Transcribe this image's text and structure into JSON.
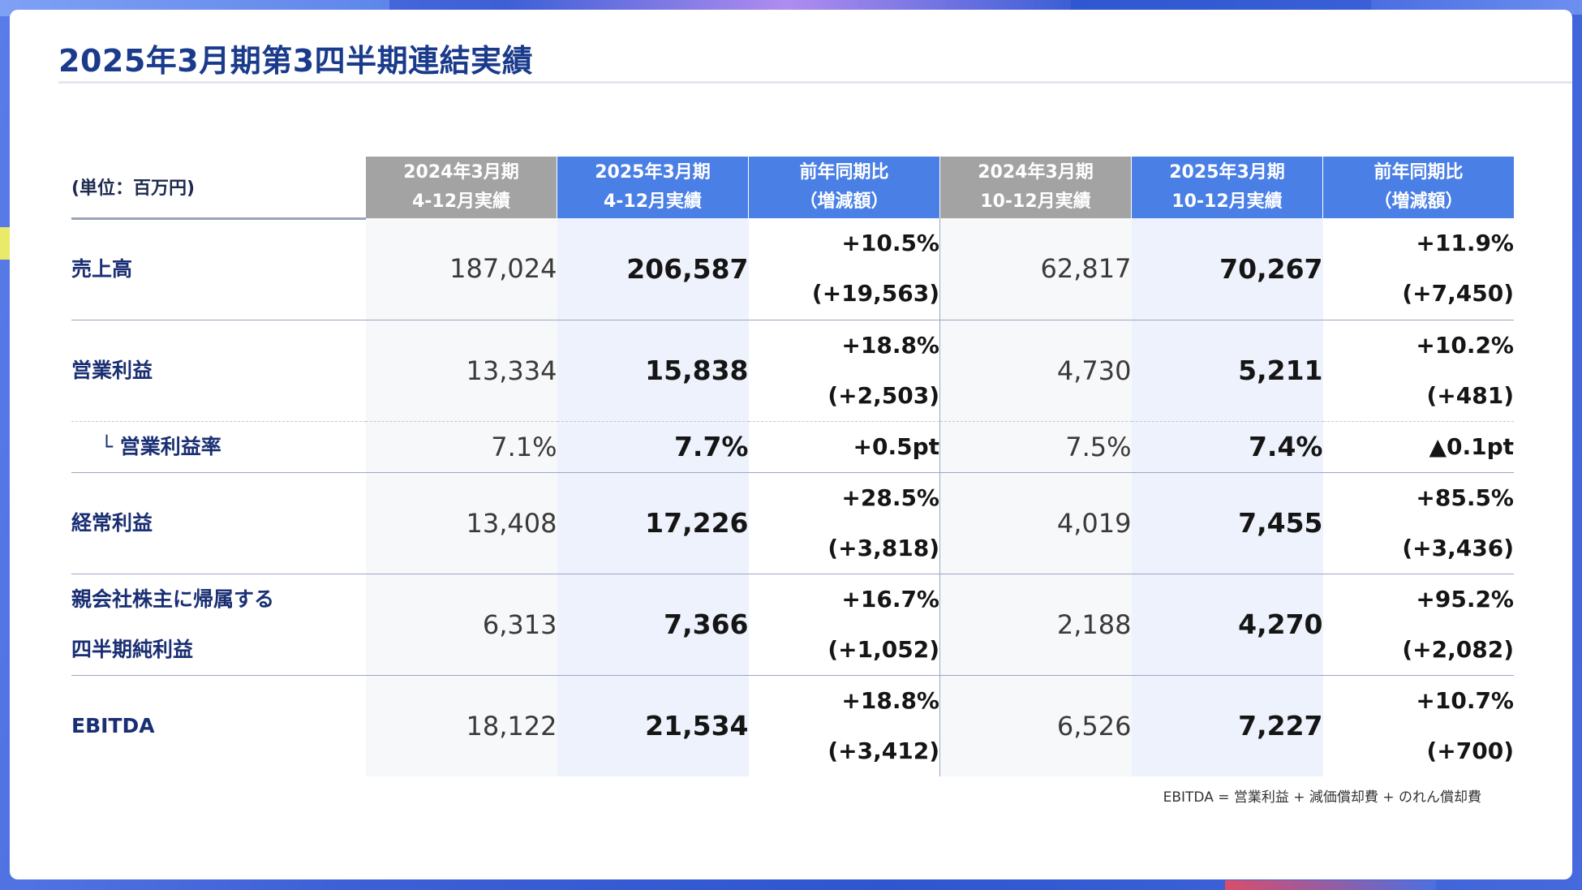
{
  "title": "2025年3月期第3四半期連結実績",
  "table": {
    "unit_label": "(単位：百万円)",
    "columns": [
      {
        "line1": "2024年3月期",
        "line2": "4-12月実績"
      },
      {
        "line1": "2025年3月期",
        "line2": "4-12月実績"
      },
      {
        "line1": "前年同期比",
        "line2": "（増減額）"
      },
      {
        "line1": "2024年3月期",
        "line2": "10-12月実績"
      },
      {
        "line1": "2025年3月期",
        "line2": "10-12月実績"
      },
      {
        "line1": "前年同期比",
        "line2": "（増減額）"
      }
    ],
    "rows": [
      {
        "label": [
          "売上高"
        ],
        "c1": "187,024",
        "c2": "206,587",
        "c3": [
          "+10.5%",
          "(+19,563)"
        ],
        "c4": "62,817",
        "c5": "70,267",
        "c6": [
          "+11.9%",
          "(+7,450)"
        ]
      },
      {
        "label": [
          "営業利益"
        ],
        "c1": "13,334",
        "c2": "15,838",
        "c3": [
          "+18.8%",
          "(+2,503)"
        ],
        "c4": "4,730",
        "c5": "5,211",
        "c6": [
          "+10.2%",
          "(+481)"
        ]
      },
      {
        "label": [
          "└ 営業利益率"
        ],
        "c1": "7.1%",
        "c2": "7.7%",
        "c3": [
          "+0.5pt"
        ],
        "c4": "7.5%",
        "c5": "7.4%",
        "c6": [
          "▲0.1pt"
        ]
      },
      {
        "label": [
          "経常利益"
        ],
        "c1": "13,408",
        "c2": "17,226",
        "c3": [
          "+28.5%",
          "(+3,818)"
        ],
        "c4": "4,019",
        "c5": "7,455",
        "c6": [
          "+85.5%",
          "(+3,436)"
        ]
      },
      {
        "label": [
          "親会社株主に帰属する",
          "四半期純利益"
        ],
        "c1": "6,313",
        "c2": "7,366",
        "c3": [
          "+16.7%",
          "(+1,052)"
        ],
        "c4": "2,188",
        "c5": "4,270",
        "c6": [
          "+95.2%",
          "(+2,082)"
        ]
      },
      {
        "label": [
          "EBITDA"
        ],
        "c1": "18,122",
        "c2": "21,534",
        "c3": [
          "+18.8%",
          "(+3,412)"
        ],
        "c4": "6,526",
        "c5": "7,227",
        "c6": [
          "+10.7%",
          "(+700)"
        ]
      }
    ]
  },
  "note": "EBITDA = 営業利益 + 減価償却費 + のれん償却費"
}
